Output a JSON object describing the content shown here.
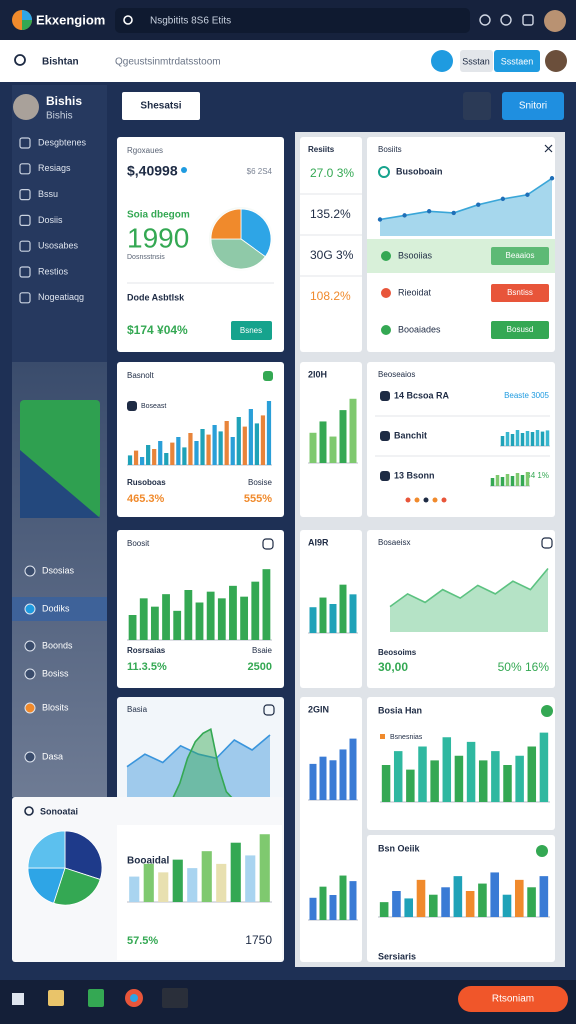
{
  "topbar": {
    "app": "Ekxengiom",
    "search": "Nsgbitits 8S6 Etits"
  },
  "toolbar": {
    "section": "Bishtan",
    "search": "Qgeustsinmtrdatsstoom",
    "buttons": [
      "Ssstan",
      "Ssstaen"
    ]
  },
  "sidebar": {
    "user": "Bishis",
    "role": "Bishis",
    "menu": [
      "Desgbtenes",
      "Resiags",
      "Bssu",
      "Dosiis",
      "Usosabes",
      "Restios",
      "Nogeatiaqg"
    ],
    "lower_menu": [
      "Dsosias",
      "Dodiks",
      "Boonds",
      "Bosiss",
      "Blosits",
      "Dasa"
    ]
  },
  "header": {
    "buttons": [
      "Shesatsi",
      "Snitori"
    ]
  },
  "cards": [
    {
      "title": "Rgoxaues",
      "value": "$,40998",
      "note": "$6 2S4",
      "subtitle": "Soia dbegom",
      "big": "1990",
      "caption": "Dosnsstnsis",
      "chart": {
        "type": "pie",
        "values": [
          35,
          40,
          25
        ],
        "colors": [
          "#2ea5e6",
          "#8fc9a8",
          "#f08a2c"
        ]
      },
      "footer": "Dode Asbtlsk",
      "footer_value": "$174 ¥04%",
      "button": "Bsnes"
    },
    {
      "title": "Resiits",
      "items": [
        "27.0 3%",
        "135.2%",
        "30G 3%",
        "108.2%"
      ],
      "item_colors": [
        "#34a853",
        "#1e2b44",
        "#1e2b44",
        "#f08a2c"
      ]
    },
    {
      "title": "Bosiits",
      "heading": "Busoboain",
      "chart": {
        "type": "area",
        "values": [
          20,
          25,
          30,
          28,
          38,
          45,
          50,
          70
        ],
        "ylim": [
          0,
          80
        ],
        "color": "#3aa6d8"
      },
      "rows": [
        {
          "label": "Bsooiias",
          "button": "Beaaios",
          "color": "#34a853"
        },
        {
          "label": "Rieoidat",
          "button": "Bsntiss",
          "color": "#e8553a"
        },
        {
          "label": "Booaiades",
          "button": "Bosusd",
          "color": "#34a853"
        }
      ]
    },
    {
      "title": "Basnolt",
      "legend": "Boseast",
      "chart": {
        "type": "bar",
        "values": [
          12,
          18,
          10,
          25,
          20,
          30,
          15,
          28,
          35,
          22,
          40,
          30,
          45,
          38,
          50,
          42,
          55,
          35,
          60,
          48,
          70,
          52,
          62,
          80
        ],
        "ylim": [
          0,
          85
        ],
        "colors": [
          "#1fa2b8",
          "#e8843a",
          "#2a9fd8"
        ]
      },
      "labels": [
        "Rusoboas",
        "Bosise"
      ],
      "values": [
        "465.3%",
        "555%"
      ],
      "value_color": "#f08a2c"
    },
    {
      "title": "2I0H",
      "chart": {
        "type": "bar",
        "values": [
          40,
          55,
          35,
          70,
          85
        ],
        "ylim": [
          0,
          90
        ],
        "colors": [
          "#7fc96f",
          "#34a853"
        ]
      }
    },
    {
      "title": "Beoseaios",
      "rows": [
        {
          "label": "14 Bcsoa RA",
          "right": "Beaste 3005"
        },
        {
          "label": "Banchit",
          "chart": {
            "type": "bar",
            "values": [
              50,
              70,
              60,
              80,
              65,
              75,
              70,
              80,
              72,
              78
            ],
            "ylim": [
              0,
              90
            ],
            "colors": [
              "#1fa2b8",
              "#3ab7cf"
            ]
          }
        },
        {
          "label": "13 Bsonn",
          "right": "B4 1%",
          "chart": {
            "type": "bar",
            "values": [
              40,
              55,
              45,
              60,
              50,
              65,
              55,
              70
            ],
            "ylim": [
              0,
              90
            ],
            "colors": [
              "#34a853",
              "#7fc96f"
            ]
          }
        }
      ]
    },
    {
      "title": "Boosit",
      "chart": {
        "type": "bar",
        "values": [
          30,
          50,
          40,
          55,
          35,
          60,
          45,
          58,
          50,
          65,
          52,
          70,
          85
        ],
        "ylim": [
          0,
          90
        ],
        "colors": [
          "#34a853"
        ]
      },
      "labels": [
        "Rosrsaias",
        "Bsaie"
      ],
      "values": [
        "11.3.5%",
        "2500"
      ],
      "value_color": "#34a853"
    },
    {
      "title": "AI9R",
      "chart": {
        "type": "bar",
        "values": [
          40,
          55,
          45,
          75,
          60
        ],
        "ylim": [
          0,
          90
        ],
        "colors": [
          "#1fa2b8",
          "#34a853"
        ]
      }
    },
    {
      "title": "Bosaeisx",
      "chart": {
        "type": "area",
        "values": [
          30,
          45,
          35,
          50,
          40,
          55,
          45,
          60,
          50,
          75
        ],
        "ylim": [
          0,
          85
        ],
        "color": "#5cc281"
      },
      "labels": [
        "Beosoims"
      ],
      "values": [
        "30,00",
        "50% 16%"
      ],
      "value_color": "#34a853"
    },
    {
      "title": "Basia",
      "chart": {
        "type": "area",
        "values": [
          40,
          55,
          45,
          65,
          55,
          50,
          72,
          60,
          78
        ],
        "ylim": [
          0,
          90
        ],
        "color": "#3a95dc"
      },
      "chart2": {
        "type": "area",
        "values": [
          0,
          20,
          50,
          70,
          80,
          85,
          40,
          10,
          0
        ],
        "ylim": [
          0,
          90
        ],
        "color": "#34a853"
      }
    },
    {
      "title": "2GIN",
      "chart": {
        "type": "bar",
        "values": [
          50,
          60,
          55,
          70,
          85
        ],
        "ylim": [
          0,
          90
        ],
        "colors": [
          "#3a7bd5"
        ]
      },
      "chart2": {
        "type": "bar",
        "values": [
          40,
          60,
          45,
          80,
          70
        ],
        "ylim": [
          0,
          90
        ],
        "colors": [
          "#3a7bd5",
          "#34a853"
        ]
      }
    },
    {
      "title": "Bosia Han",
      "legend": "Bsnesnias",
      "chart": {
        "type": "bar",
        "values": [
          40,
          55,
          35,
          60,
          45,
          70,
          50,
          65,
          45,
          55,
          40,
          50,
          60,
          75
        ],
        "ylim": [
          0,
          80
        ],
        "colors": [
          "#34a853",
          "#2fb8a0"
        ]
      }
    },
    {
      "title": "Bsn Oeiik",
      "footer": "Sersiaris",
      "chart": {
        "type": "bar",
        "values": [
          20,
          35,
          25,
          50,
          30,
          40,
          55,
          35,
          45,
          60,
          30,
          50,
          40,
          55
        ],
        "ylim": [
          0,
          70
        ],
        "colors": [
          "#34a853",
          "#3a7bd5",
          "#1fa2b8",
          "#f08a2c"
        ]
      }
    },
    {
      "title": "Sonoatai",
      "label": "Booaidal",
      "chart": {
        "type": "pie",
        "values": [
          30,
          25,
          20,
          25
        ],
        "colors": [
          "#1e3a8a",
          "#34a853",
          "#2ea5e6",
          "#5cc0ee"
        ]
      },
      "chart2": {
        "type": "bar",
        "values": [
          30,
          45,
          35,
          50,
          40,
          60,
          45,
          70,
          55,
          80
        ],
        "ylim": [
          0,
          85
        ],
        "colors": [
          "#a9d4f0",
          "#7fc96f",
          "#e8e0b0",
          "#34a853"
        ]
      },
      "values": [
        "57.5%",
        "1750"
      ],
      "value_color": "#34a853"
    }
  ],
  "taskbar": {
    "button": "Rtsoniam"
  }
}
